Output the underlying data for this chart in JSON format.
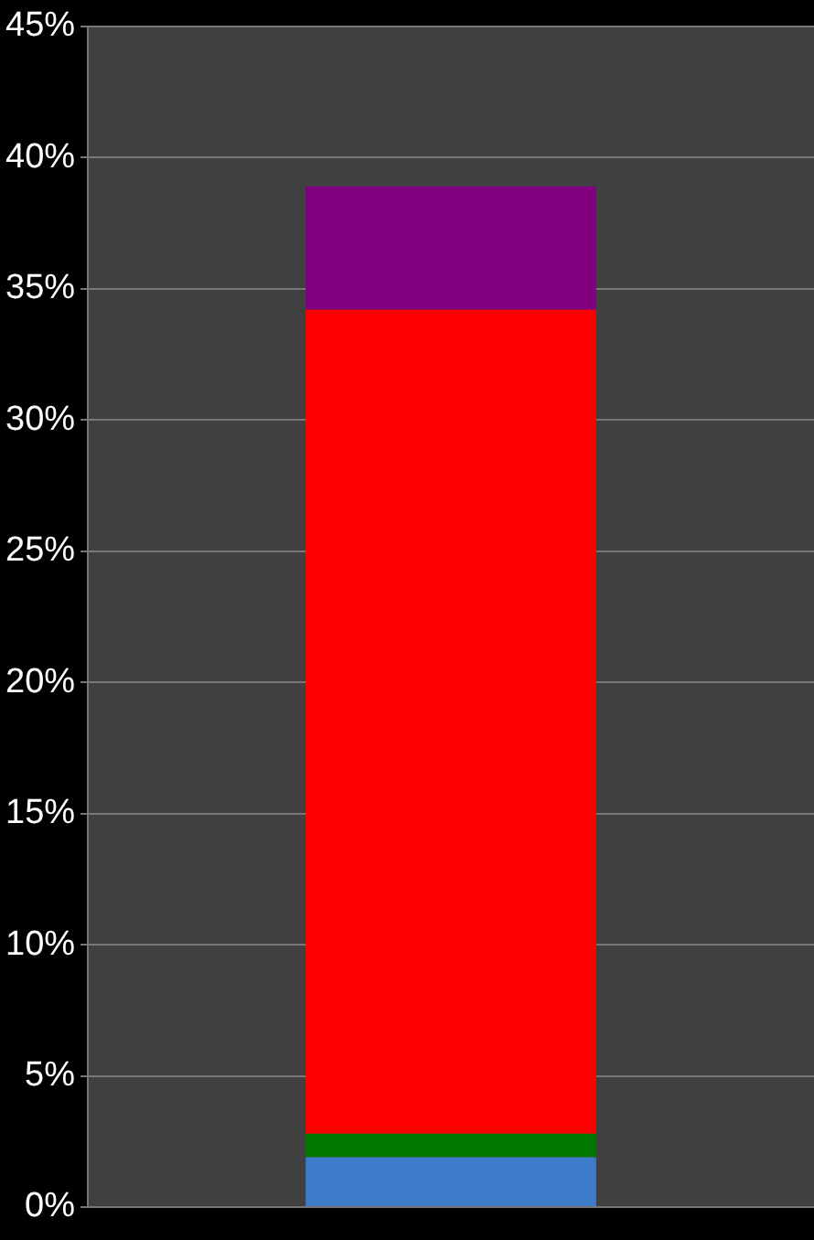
{
  "chart_data": {
    "type": "bar",
    "stacked": true,
    "categories": [
      null
    ],
    "series": [
      {
        "color": "#3d7cc9",
        "values": [
          1.9
        ]
      },
      {
        "color": "#007700",
        "values": [
          0.9
        ]
      },
      {
        "color": "#ff0000",
        "values": [
          31.4
        ]
      },
      {
        "color": "#800080",
        "values": [
          4.7
        ]
      }
    ],
    "ylim": [
      0,
      45
    ],
    "yticks": [
      {
        "value": 0,
        "label": "0%"
      },
      {
        "value": 5,
        "label": "5%"
      },
      {
        "value": 10,
        "label": "10%"
      },
      {
        "value": 15,
        "label": "15%"
      },
      {
        "value": 20,
        "label": "20%"
      },
      {
        "value": 25,
        "label": "25%"
      },
      {
        "value": 30,
        "label": "30%"
      },
      {
        "value": 35,
        "label": "35%"
      },
      {
        "value": 40,
        "label": "40%"
      },
      {
        "value": 45,
        "label": "45%"
      }
    ],
    "grid": "y",
    "legend": false,
    "tick_labels": "y"
  }
}
